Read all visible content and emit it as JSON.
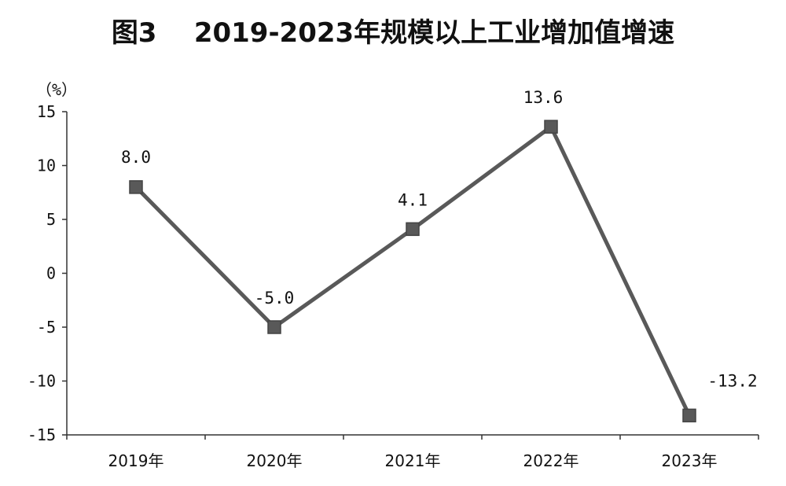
{
  "chart_data": {
    "type": "line",
    "title": "图3    2019-2023年规模以上工业增加值增速",
    "ylabel": "（%）",
    "xlabel": "",
    "categories": [
      "2019年",
      "2020年",
      "2021年",
      "2022年",
      "2023年"
    ],
    "series": [
      {
        "values": [
          8.0,
          -5.0,
          4.1,
          13.6,
          -13.2
        ],
        "labels": [
          "8.0",
          "-5.0",
          "4.1",
          "13.6",
          "-13.2"
        ],
        "color": "#595959"
      }
    ],
    "yticks": [
      15,
      10,
      5,
      0,
      -5,
      -10,
      -15
    ],
    "ytick_labels": [
      "15",
      "10",
      "5",
      "0",
      "-5",
      "-10",
      "-15"
    ],
    "ylim": [
      -15,
      15
    ],
    "grid": false,
    "legend": "none"
  }
}
